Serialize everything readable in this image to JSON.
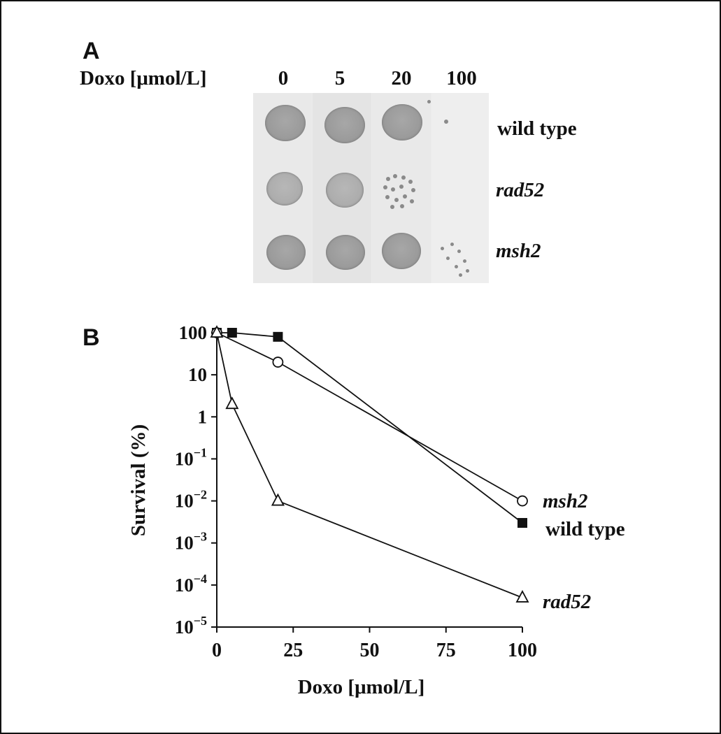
{
  "panel_a": {
    "letter": "A",
    "header_label": "Doxo [μmol/L]",
    "concentrations": [
      "0",
      "5",
      "20",
      "100"
    ],
    "strains": [
      "wild type",
      "rad52",
      "msh2"
    ]
  },
  "panel_b": {
    "letter": "B"
  },
  "chart_data": {
    "type": "line",
    "xlabel": "Doxo [μmol/L]",
    "ylabel": "Survival (%)",
    "xlim": [
      0,
      100
    ],
    "ylim": [
      1e-05,
      100
    ],
    "y_scale": "log",
    "x_ticks": [
      "0",
      "25",
      "50",
      "75",
      "100"
    ],
    "y_ticks": [
      {
        "base": "100",
        "exp": ""
      },
      {
        "base": "10",
        "exp": ""
      },
      {
        "base": "1",
        "exp": ""
      },
      {
        "base": "10",
        "exp": "−1"
      },
      {
        "base": "10",
        "exp": "−2"
      },
      {
        "base": "10",
        "exp": "−3"
      },
      {
        "base": "10",
        "exp": "−4"
      },
      {
        "base": "10",
        "exp": "−5"
      }
    ],
    "y_tick_values": [
      100,
      10,
      1,
      0.1,
      0.01,
      0.001,
      0.0001,
      1e-05
    ],
    "x_tick_values": [
      0,
      25,
      50,
      75,
      100
    ],
    "series": [
      {
        "name": "wild type",
        "marker": "filled-square",
        "italic": false,
        "x": [
          0,
          5,
          20,
          100
        ],
        "y": [
          100,
          100,
          80,
          0.003
        ]
      },
      {
        "name": "msh2",
        "marker": "open-circle",
        "italic": true,
        "x": [
          0,
          20,
          100
        ],
        "y": [
          100,
          20,
          0.01
        ]
      },
      {
        "name": "rad52",
        "marker": "open-triangle",
        "italic": true,
        "x": [
          0,
          5,
          20,
          100
        ],
        "y": [
          100,
          2,
          0.01,
          5e-05
        ]
      }
    ]
  }
}
